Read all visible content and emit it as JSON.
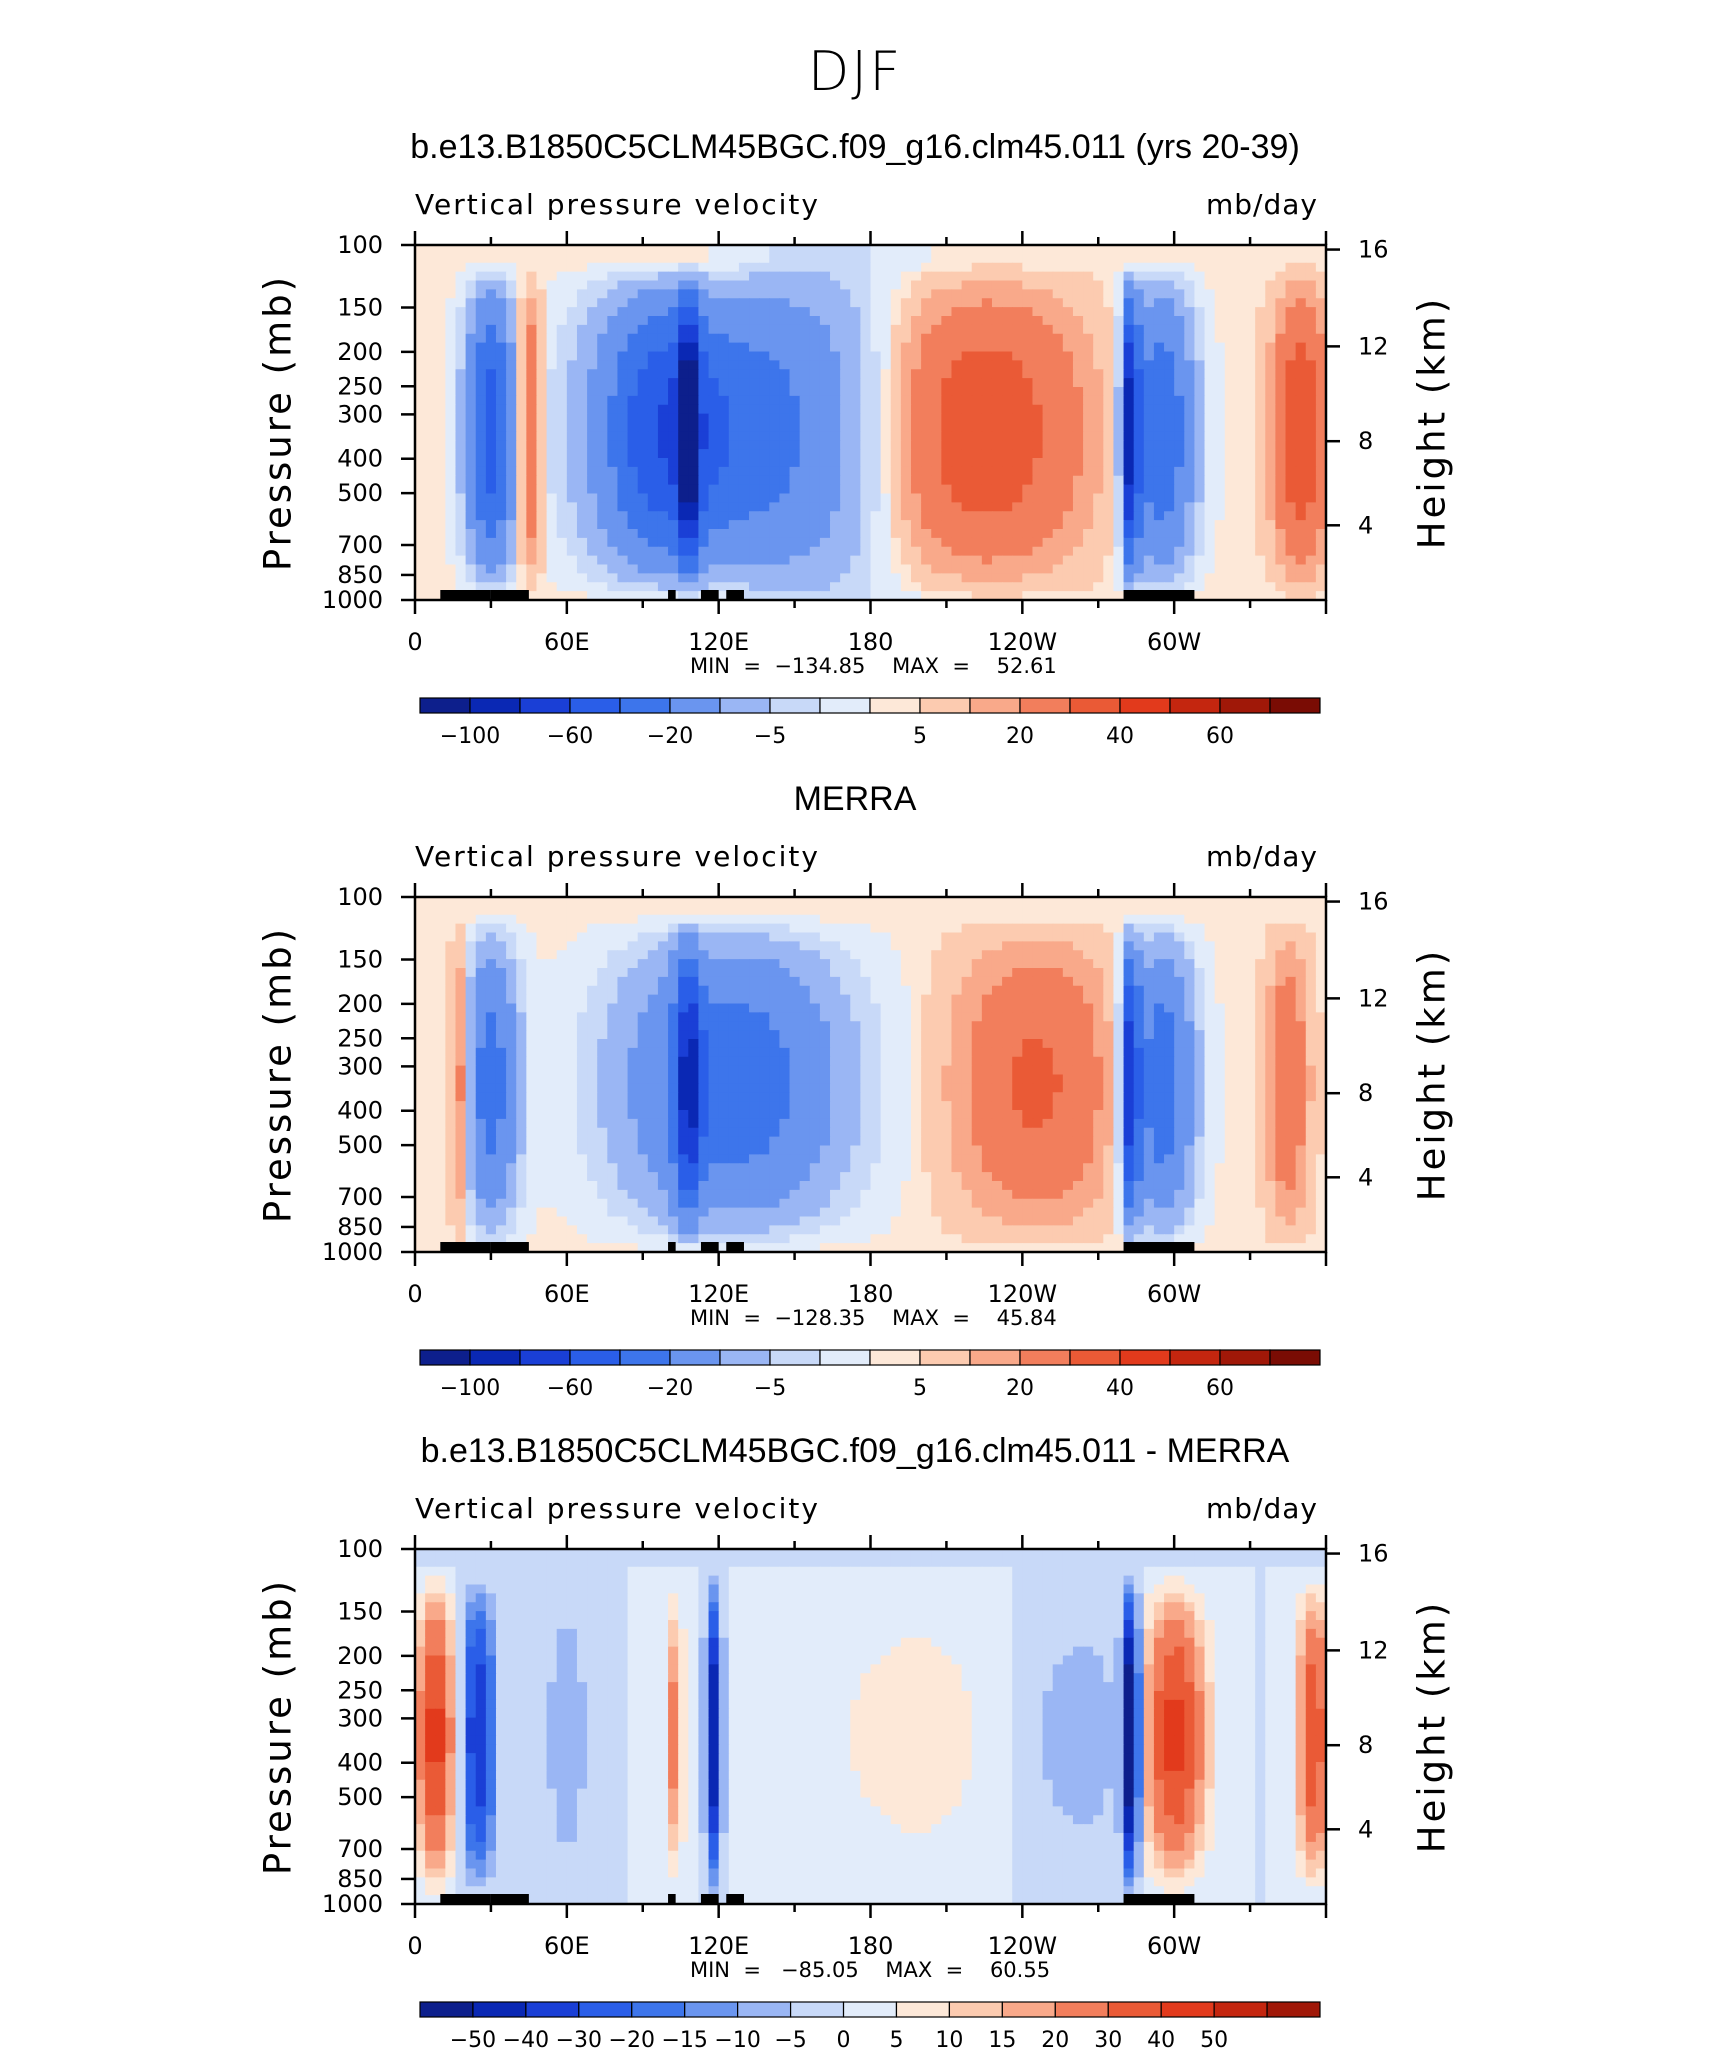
{
  "figure_title": "DJF",
  "panels": [
    {
      "title": "b.e13.B1850C5CLM45BGC.f09_g16.clm45.011 (yrs 20-39)",
      "var_name": "Vertical pressure velocity",
      "units": "mb/day",
      "min_label": "MIN  =  −134.85",
      "max_label": "MAX  =    52.61"
    },
    {
      "title": "MERRA",
      "var_name": "Vertical pressure velocity",
      "units": "mb/day",
      "min_label": "MIN  =  −128.35",
      "max_label": "MAX  =    45.84"
    },
    {
      "title": "b.e13.B1850C5CLM45BGC.f09_g16.clm45.011 - MERRA",
      "var_name": "Vertical pressure velocity",
      "units": "mb/day",
      "min_label": "MIN  =   −85.05",
      "max_label": "MAX  =    60.55"
    }
  ],
  "axis_labels": {
    "left": "Pressure  (mb)",
    "right": "Height  (km)"
  },
  "chart_data": [
    {
      "type": "heatmap",
      "title": "b.e13.B1850C5CLM45BGC.f09_g16.clm45.011 (yrs 20-39)",
      "subtitle": "Vertical pressure velocity",
      "units": "mb/day",
      "x_ticks": [
        "0",
        "60E",
        "120E",
        "180",
        "120W",
        "60W"
      ],
      "x_range_deg": [
        0,
        360
      ],
      "y_ticks_pressure": [
        100,
        150,
        200,
        250,
        300,
        400,
        500,
        700,
        850,
        1000
      ],
      "y_ticks_height_km": [
        16,
        12,
        8,
        4
      ],
      "y_scale": "log",
      "min": -134.85,
      "max": 52.61,
      "colorbar_levels": [
        -120,
        -100,
        -80,
        -60,
        -40,
        -20,
        -10,
        -5,
        -1,
        1,
        5,
        10,
        20,
        30,
        40,
        50,
        60,
        70
      ],
      "colorbar_labels": [
        "−100",
        "−60",
        "−20",
        "−5",
        "5",
        "20",
        "40",
        "60"
      ],
      "colorbar_colors": [
        "#0d1f8c",
        "#0a28b4",
        "#1a3fd6",
        "#2a5ee8",
        "#3d75eb",
        "#6a95ef",
        "#9ab6f4",
        "#c8d9f8",
        "#e2ecfa",
        "#fde8d8",
        "#fccbb0",
        "#f9a98a",
        "#f27e5c",
        "#ea5a36",
        "#e23a1c",
        "#c4260f",
        "#a01808",
        "#7a0c04"
      ]
    },
    {
      "type": "heatmap",
      "title": "MERRA",
      "subtitle": "Vertical pressure velocity",
      "units": "mb/day",
      "x_ticks": [
        "0",
        "60E",
        "120E",
        "180",
        "120W",
        "60W"
      ],
      "x_range_deg": [
        0,
        360
      ],
      "y_ticks_pressure": [
        100,
        150,
        200,
        250,
        300,
        400,
        500,
        700,
        850,
        1000
      ],
      "y_ticks_height_km": [
        16,
        12,
        8,
        4
      ],
      "y_scale": "log",
      "min": -128.35,
      "max": 45.84,
      "colorbar_levels": [
        -120,
        -100,
        -80,
        -60,
        -40,
        -20,
        -10,
        -5,
        -1,
        1,
        5,
        10,
        20,
        30,
        40,
        50,
        60,
        70
      ],
      "colorbar_labels": [
        "−100",
        "−60",
        "−20",
        "−5",
        "5",
        "20",
        "40",
        "60"
      ],
      "colorbar_colors": [
        "#0d1f8c",
        "#0a28b4",
        "#1a3fd6",
        "#2a5ee8",
        "#3d75eb",
        "#6a95ef",
        "#9ab6f4",
        "#c8d9f8",
        "#e2ecfa",
        "#fde8d8",
        "#fccbb0",
        "#f9a98a",
        "#f27e5c",
        "#ea5a36",
        "#e23a1c",
        "#c4260f",
        "#a01808",
        "#7a0c04"
      ]
    },
    {
      "type": "heatmap",
      "title": "b.e13.B1850C5CLM45BGC.f09_g16.clm45.011 - MERRA",
      "subtitle": "Vertical pressure velocity",
      "units": "mb/day",
      "x_ticks": [
        "0",
        "60E",
        "120E",
        "180",
        "120W",
        "60W"
      ],
      "x_range_deg": [
        0,
        360
      ],
      "y_ticks_pressure": [
        100,
        150,
        200,
        250,
        300,
        400,
        500,
        700,
        850,
        1000
      ],
      "y_ticks_height_km": [
        16,
        12,
        8,
        4
      ],
      "y_scale": "log",
      "min": -85.05,
      "max": 60.55,
      "colorbar_levels": [
        -50,
        -40,
        -30,
        -20,
        -15,
        -10,
        -5,
        0,
        5,
        10,
        15,
        20,
        30,
        40,
        50
      ],
      "colorbar_labels": [
        "−50",
        "−40",
        "−30",
        "−20",
        "−15",
        "−10",
        "−5",
        "0",
        "5",
        "10",
        "15",
        "20",
        "30",
        "40",
        "50"
      ],
      "colorbar_colors": [
        "#0d1f8c",
        "#0a28b4",
        "#1a3fd6",
        "#2a5ee8",
        "#3d75eb",
        "#6a95ef",
        "#9ab6f4",
        "#c8d9f8",
        "#e2ecfa",
        "#fde8d8",
        "#fccbb0",
        "#f9a98a",
        "#f27e5c",
        "#ea5a36",
        "#e23a1c",
        "#c4260f",
        "#a01808"
      ]
    }
  ]
}
